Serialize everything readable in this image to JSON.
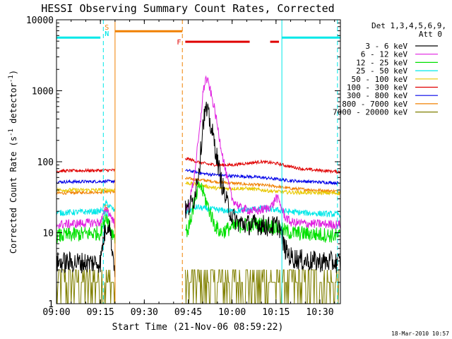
{
  "chart_data": {
    "type": "line",
    "title": "HESSI Observing Summary Count Rates, Corrected",
    "xlabel": "Start Time (21-Nov-06 08:59:22)",
    "ylabel_main": "Corrected Count Rate (s",
    "ylabel_sup1": "-1",
    "ylabel_mid": " detector",
    "ylabel_sup2": "-1",
    "ylabel_end": ")",
    "footer": "18-Mar-2010 10:57",
    "yscale": "log",
    "ylim": [
      1,
      10000
    ],
    "xlim": [
      "09:00",
      "10:37"
    ],
    "xticks": [
      "09:00",
      "09:15",
      "09:30",
      "09:45",
      "10:00",
      "10:15",
      "10:30"
    ],
    "yticks": [
      "1",
      "10",
      "100",
      "1000",
      "10000"
    ],
    "legend": {
      "header_line1": "Det 1,3,4,5,6,9,",
      "header_line2": "Att 0",
      "entries": [
        {
          "label": "3 - 6 keV",
          "color": "#000000"
        },
        {
          "label": "6 - 12 keV",
          "color": "#e020e0"
        },
        {
          "label": "12 - 25 keV",
          "color": "#00e000"
        },
        {
          "label": "25 - 50 keV",
          "color": "#00e8e8"
        },
        {
          "label": "50 - 100 keV",
          "color": "#e8c800"
        },
        {
          "label": "100 - 300 keV",
          "color": "#e00000"
        },
        {
          "label": "300 - 800 keV",
          "color": "#0000e8"
        },
        {
          "label": "800 - 7000 keV",
          "color": "#f08000"
        },
        {
          "label": "7000 - 20000 keV",
          "color": "#808000"
        }
      ]
    },
    "series": [
      {
        "name": "3 - 6 keV",
        "color": "#000000",
        "noise": 0.35,
        "points": [
          [
            "09:00",
            3.8
          ],
          [
            "09:15",
            3.8
          ],
          [
            "09:16",
            8
          ],
          [
            "09:17",
            12
          ],
          [
            "09:18",
            14
          ],
          [
            "09:19",
            6
          ],
          [
            "09:20",
            3
          ],
          [
            "09:45",
            22
          ],
          [
            "09:47",
            30
          ],
          [
            "09:49",
            100
          ],
          [
            "09:50",
            350
          ],
          [
            "09:51",
            550
          ],
          [
            "09:52",
            430
          ],
          [
            "09:54",
            180
          ],
          [
            "09:56",
            60
          ],
          [
            "09:58",
            28
          ],
          [
            "10:00",
            17
          ],
          [
            "10:02",
            14
          ],
          [
            "10:05",
            13
          ],
          [
            "10:10",
            13
          ],
          [
            "10:13",
            12
          ],
          [
            "10:16",
            13
          ],
          [
            "10:18",
            6
          ],
          [
            "10:20",
            4.5
          ],
          [
            "10:25",
            4
          ],
          [
            "10:37",
            3.8
          ]
        ]
      },
      {
        "name": "6 - 12 keV",
        "color": "#e020e0",
        "noise": 0.15,
        "points": [
          [
            "09:00",
            13
          ],
          [
            "09:15",
            14
          ],
          [
            "09:17",
            22
          ],
          [
            "09:19",
            16
          ],
          [
            "09:20",
            13
          ],
          [
            "09:45",
            22
          ],
          [
            "09:47",
            60
          ],
          [
            "09:49",
            300
          ],
          [
            "09:50",
            900
          ],
          [
            "09:51",
            1500
          ],
          [
            "09:52",
            1250
          ],
          [
            "09:54",
            550
          ],
          [
            "09:56",
            180
          ],
          [
            "09:58",
            65
          ],
          [
            "10:00",
            30
          ],
          [
            "10:03",
            22
          ],
          [
            "10:08",
            20
          ],
          [
            "10:12",
            22
          ],
          [
            "10:14",
            25
          ],
          [
            "10:15",
            32
          ],
          [
            "10:16",
            28
          ],
          [
            "10:18",
            17
          ],
          [
            "10:20",
            14
          ],
          [
            "10:25",
            13.5
          ],
          [
            "10:37",
            13
          ]
        ]
      },
      {
        "name": "12 - 25 keV",
        "color": "#00e000",
        "noise": 0.25,
        "points": [
          [
            "09:00",
            9
          ],
          [
            "09:15",
            10
          ],
          [
            "09:17",
            18
          ],
          [
            "09:19",
            10
          ],
          [
            "09:20",
            9
          ],
          [
            "09:45",
            11
          ],
          [
            "09:47",
            25
          ],
          [
            "09:49",
            48
          ],
          [
            "09:50",
            38
          ],
          [
            "09:52",
            22
          ],
          [
            "09:54",
            13
          ],
          [
            "09:56",
            10
          ],
          [
            "10:00",
            12
          ],
          [
            "10:05",
            13
          ],
          [
            "10:10",
            13
          ],
          [
            "10:15",
            12
          ],
          [
            "10:17",
            11
          ],
          [
            "10:20",
            10
          ],
          [
            "10:37",
            9
          ]
        ]
      },
      {
        "name": "25 - 50 keV",
        "color": "#00e8e8",
        "noise": 0.1,
        "points": [
          [
            "09:00",
            19
          ],
          [
            "09:15",
            20
          ],
          [
            "09:17",
            26
          ],
          [
            "09:19",
            22
          ],
          [
            "09:20",
            20
          ],
          [
            "09:45",
            20
          ],
          [
            "09:48",
            23
          ],
          [
            "09:50",
            22
          ],
          [
            "09:55",
            21
          ],
          [
            "10:00",
            20
          ],
          [
            "10:05",
            21
          ],
          [
            "10:10",
            22
          ],
          [
            "10:15",
            21
          ],
          [
            "10:18",
            20
          ],
          [
            "10:25",
            19
          ],
          [
            "10:37",
            18
          ]
        ]
      },
      {
        "name": "50 - 100 keV",
        "color": "#e8c800",
        "noise": 0.06,
        "points": [
          [
            "09:00",
            40
          ],
          [
            "09:20",
            40
          ],
          [
            "09:45",
            50
          ],
          [
            "09:50",
            46
          ],
          [
            "09:55",
            42
          ],
          [
            "10:00",
            42
          ],
          [
            "10:05",
            42
          ],
          [
            "10:10",
            40
          ],
          [
            "10:15",
            38
          ],
          [
            "10:20",
            37
          ],
          [
            "10:37",
            36
          ]
        ]
      },
      {
        "name": "100 - 300 keV",
        "color": "#e00000",
        "noise": 0.05,
        "points": [
          [
            "09:00",
            74
          ],
          [
            "09:20",
            76
          ],
          [
            "09:45",
            110
          ],
          [
            "09:48",
            100
          ],
          [
            "09:52",
            92
          ],
          [
            "09:56",
            90
          ],
          [
            "10:00",
            90
          ],
          [
            "10:05",
            95
          ],
          [
            "10:10",
            100
          ],
          [
            "10:15",
            95
          ],
          [
            "10:20",
            85
          ],
          [
            "10:25",
            78
          ],
          [
            "10:37",
            72
          ]
        ]
      },
      {
        "name": "300 - 800 keV",
        "color": "#0000e8",
        "noise": 0.05,
        "points": [
          [
            "09:00",
            52
          ],
          [
            "09:20",
            53
          ],
          [
            "09:45",
            75
          ],
          [
            "09:50",
            68
          ],
          [
            "09:55",
            65
          ],
          [
            "10:00",
            63
          ],
          [
            "10:05",
            62
          ],
          [
            "10:10",
            60
          ],
          [
            "10:15",
            57
          ],
          [
            "10:20",
            54
          ],
          [
            "10:37",
            50
          ]
        ]
      },
      {
        "name": "800 - 7000 keV",
        "color": "#f08000",
        "noise": 0.05,
        "points": [
          [
            "09:00",
            36
          ],
          [
            "09:20",
            38
          ],
          [
            "09:45",
            58
          ],
          [
            "09:50",
            55
          ],
          [
            "09:55",
            52
          ],
          [
            "10:00",
            50
          ],
          [
            "10:05",
            48
          ],
          [
            "10:10",
            47
          ],
          [
            "10:15",
            45
          ],
          [
            "10:20",
            42
          ],
          [
            "10:37",
            38
          ]
        ]
      },
      {
        "name": "7000 - 20000 keV",
        "color": "#808000",
        "noise": 0,
        "points": [
          [
            "09:00",
            1.5
          ],
          [
            "09:20",
            1.5
          ],
          [
            "09:45",
            1.6
          ],
          [
            "10:37",
            1.6
          ]
        ]
      }
    ],
    "segments": [
      {
        "type": "N",
        "label": "N",
        "color": "#00e8e8",
        "y": 5600,
        "from": "09:00",
        "to": "09:15"
      },
      {
        "type": "N",
        "label": "N",
        "color": "#00e8e8",
        "y": 5600,
        "from": "10:17",
        "to": "10:37"
      },
      {
        "type": "S",
        "label": "S",
        "color": "#f08000",
        "y": 6900,
        "from": "09:20",
        "to": "09:43"
      },
      {
        "type": "F",
        "label": "F",
        "color": "#e00000",
        "y": 4900,
        "from": "09:44",
        "to": "10:06"
      },
      {
        "type": "F",
        "label": "",
        "color": "#e00000",
        "y": 4900,
        "from": "10:13",
        "to": "10:16"
      }
    ],
    "vlines": [
      {
        "t": "09:00",
        "color": "#00e8e8",
        "dashed": false
      },
      {
        "t": "09:16",
        "color": "#00e8e8",
        "dashed": true
      },
      {
        "t": "09:20",
        "color": "#f08000",
        "dashed": false
      },
      {
        "t": "09:43",
        "color": "#f08000",
        "dashed": true
      },
      {
        "t": "10:17",
        "color": "#00e8e8",
        "dashed": false
      },
      {
        "t": "10:36",
        "color": "#00e8e8",
        "dashed": true
      }
    ],
    "data_gap": [
      "09:20",
      "09:44"
    ]
  }
}
